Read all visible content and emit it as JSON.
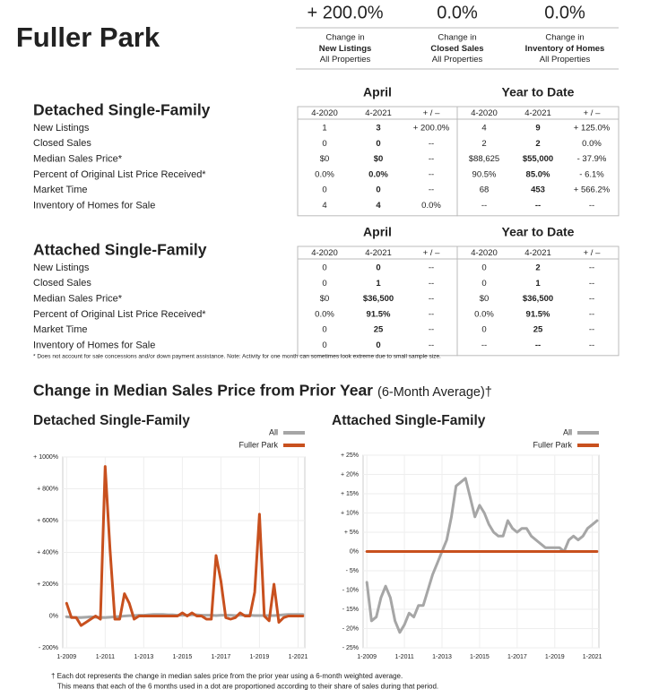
{
  "header": {
    "title": "Fuller Park"
  },
  "summary": [
    {
      "value": "+ 200.0%",
      "lines": [
        "Change in",
        "New Listings",
        "All Properties"
      ]
    },
    {
      "value": "0.0%",
      "lines": [
        "Change in",
        "Closed Sales",
        "All Properties"
      ]
    },
    {
      "value": "0.0%",
      "lines": [
        "Change in",
        "Inventory of Homes",
        "All Properties"
      ]
    }
  ],
  "sections": [
    {
      "title": "Detached Single-Family",
      "groups": [
        "April",
        "Year to Date"
      ],
      "columns": [
        "4-2020",
        "4-2021",
        "+ / –",
        "4-2020",
        "4-2021",
        "+ / –"
      ],
      "rows": [
        [
          "New Listings",
          "1",
          "3",
          "+ 200.0%",
          "4",
          "9",
          "+ 125.0%"
        ],
        [
          "Closed Sales",
          "0",
          "0",
          "--",
          "2",
          "2",
          "0.0%"
        ],
        [
          "Median Sales Price*",
          "$0",
          "$0",
          "--",
          "$88,625",
          "$55,000",
          "- 37.9%"
        ],
        [
          "Percent of Original List Price Received*",
          "0.0%",
          "0.0%",
          "--",
          "90.5%",
          "85.0%",
          "- 6.1%"
        ],
        [
          "Market Time",
          "0",
          "0",
          "--",
          "68",
          "453",
          "+ 566.2%"
        ],
        [
          "Inventory of Homes for Sale",
          "4",
          "4",
          "0.0%",
          "--",
          "--",
          "--"
        ]
      ]
    },
    {
      "title": "Attached Single-Family",
      "groups": [
        "April",
        "Year to Date"
      ],
      "columns": [
        "4-2020",
        "4-2021",
        "+ / –",
        "4-2020",
        "4-2021",
        "+ / –"
      ],
      "rows": [
        [
          "New Listings",
          "0",
          "0",
          "--",
          "0",
          "2",
          "--"
        ],
        [
          "Closed Sales",
          "0",
          "1",
          "--",
          "0",
          "1",
          "--"
        ],
        [
          "Median Sales Price*",
          "$0",
          "$36,500",
          "--",
          "$0",
          "$36,500",
          "--"
        ],
        [
          "Percent of Original List Price Received*",
          "0.0%",
          "91.5%",
          "--",
          "0.0%",
          "91.5%",
          "--"
        ],
        [
          "Market Time",
          "0",
          "25",
          "--",
          "0",
          "25",
          "--"
        ],
        [
          "Inventory of Homes for Sale",
          "0",
          "0",
          "--",
          "--",
          "--",
          "--"
        ]
      ]
    }
  ],
  "note": "* Does not account for sale concessions and/or down payment assistance. Note: Activity for one month can sometimes look extreme due to small sample size.",
  "charts_title": "Change in Median Sales Price from Prior Year",
  "charts_subtitle": "(6-Month Average)†",
  "chart_data": [
    {
      "type": "line",
      "title": "Detached Single-Family",
      "x": [
        2009,
        2009.25,
        2009.5,
        2009.75,
        2010,
        2010.25,
        2010.5,
        2010.75,
        2011,
        2011.25,
        2011.5,
        2011.75,
        2012,
        2012.25,
        2012.5,
        2012.75,
        2013,
        2013.25,
        2013.5,
        2013.75,
        2014,
        2014.25,
        2014.5,
        2014.75,
        2015,
        2015.25,
        2015.5,
        2015.75,
        2016,
        2016.25,
        2016.5,
        2016.75,
        2017,
        2017.25,
        2017.5,
        2017.75,
        2018,
        2018.25,
        2018.5,
        2018.75,
        2019,
        2019.25,
        2019.5,
        2019.75,
        2020,
        2020.25,
        2020.5,
        2020.75,
        2021,
        2021.25
      ],
      "xlim": [
        2008.8,
        2021.35
      ],
      "xticks": [
        {
          "value": 2009,
          "label": "1-2009"
        },
        {
          "value": 2011,
          "label": "1-2011"
        },
        {
          "value": 2013,
          "label": "1-2013"
        },
        {
          "value": 2015,
          "label": "1-2015"
        },
        {
          "value": 2017,
          "label": "1-2017"
        },
        {
          "value": 2019,
          "label": "1-2019"
        },
        {
          "value": 2021,
          "label": "1-2021"
        }
      ],
      "ylim": [
        -200,
        1000
      ],
      "yticks": [
        {
          "value": -200,
          "label": "- 200%"
        },
        {
          "value": 0,
          "label": "0%"
        },
        {
          "value": 200,
          "label": "+ 200%"
        },
        {
          "value": 400,
          "label": "+ 400%"
        },
        {
          "value": 600,
          "label": "+ 600%"
        },
        {
          "value": 800,
          "label": "+ 800%"
        },
        {
          "value": 1000,
          "label": "+ 1000%"
        }
      ],
      "grid": true,
      "series": [
        {
          "name": "All",
          "color": "#a6a6a6",
          "values": [
            -5,
            -8,
            -10,
            -10,
            -8,
            -5,
            -8,
            -10,
            -10,
            -8,
            -5,
            -3,
            0,
            2,
            3,
            5,
            5,
            8,
            10,
            10,
            10,
            8,
            8,
            5,
            5,
            5,
            8,
            8,
            5,
            5,
            5,
            3,
            5,
            5,
            5,
            3,
            5,
            5,
            5,
            3,
            3,
            3,
            3,
            3,
            5,
            8,
            10,
            10,
            10,
            10
          ]
        },
        {
          "name": "Fuller Park",
          "color": "#c8501e",
          "values": [
            80,
            -10,
            -10,
            -60,
            -40,
            -20,
            0,
            -20,
            940,
            420,
            -20,
            -20,
            140,
            80,
            -20,
            0,
            0,
            0,
            0,
            0,
            0,
            0,
            0,
            0,
            20,
            0,
            20,
            0,
            0,
            -20,
            -20,
            380,
            220,
            -10,
            -20,
            -10,
            20,
            0,
            0,
            150,
            640,
            0,
            -30,
            200,
            -40,
            -10,
            0,
            0,
            0,
            0
          ]
        }
      ]
    },
    {
      "type": "line",
      "title": "Attached Single-Family",
      "x": [
        2009,
        2009.25,
        2009.5,
        2009.75,
        2010,
        2010.25,
        2010.5,
        2010.75,
        2011,
        2011.25,
        2011.5,
        2011.75,
        2012,
        2012.25,
        2012.5,
        2012.75,
        2013,
        2013.25,
        2013.5,
        2013.75,
        2014,
        2014.25,
        2014.5,
        2014.75,
        2015,
        2015.25,
        2015.5,
        2015.75,
        2016,
        2016.25,
        2016.5,
        2016.75,
        2017,
        2017.25,
        2017.5,
        2017.75,
        2018,
        2018.25,
        2018.5,
        2018.75,
        2019,
        2019.25,
        2019.5,
        2019.75,
        2020,
        2020.25,
        2020.5,
        2020.75,
        2021,
        2021.25
      ],
      "xlim": [
        2008.8,
        2021.35
      ],
      "xticks": [
        {
          "value": 2009,
          "label": "1-2009"
        },
        {
          "value": 2011,
          "label": "1-2011"
        },
        {
          "value": 2013,
          "label": "1-2013"
        },
        {
          "value": 2015,
          "label": "1-2015"
        },
        {
          "value": 2017,
          "label": "1-2017"
        },
        {
          "value": 2019,
          "label": "1-2019"
        },
        {
          "value": 2021,
          "label": "1-2021"
        }
      ],
      "ylim": [
        -25,
        25
      ],
      "yticks": [
        {
          "value": -25,
          "label": "- 25%"
        },
        {
          "value": -20,
          "label": "- 20%"
        },
        {
          "value": -15,
          "label": "- 15%"
        },
        {
          "value": -10,
          "label": "- 10%"
        },
        {
          "value": -5,
          "label": "- 5%"
        },
        {
          "value": 0,
          "label": "0%"
        },
        {
          "value": 5,
          "label": "+ 5%"
        },
        {
          "value": 10,
          "label": "+ 10%"
        },
        {
          "value": 15,
          "label": "+ 15%"
        },
        {
          "value": 20,
          "label": "+ 20%"
        },
        {
          "value": 25,
          "label": "+ 25%"
        }
      ],
      "grid": true,
      "series": [
        {
          "name": "All",
          "color": "#a6a6a6",
          "values": [
            -8,
            -18,
            -17,
            -12,
            -9,
            -12,
            -18,
            -21,
            -19,
            -16,
            -17,
            -14,
            -14,
            -10,
            -6,
            -3,
            0,
            3,
            9,
            17,
            18,
            19,
            14,
            9,
            12,
            10,
            7,
            5,
            4,
            4,
            8,
            6,
            5,
            6,
            6,
            4,
            3,
            2,
            1,
            1,
            1,
            1,
            0,
            3,
            4,
            3,
            4,
            6,
            7,
            8
          ]
        },
        {
          "name": "Fuller Park",
          "color": "#c8501e",
          "values": [
            0,
            0,
            0,
            0,
            0,
            0,
            0,
            0,
            0,
            0,
            0,
            0,
            0,
            0,
            0,
            0,
            0,
            0,
            0,
            0,
            0,
            0,
            0,
            0,
            0,
            0,
            0,
            0,
            0,
            0,
            0,
            0,
            0,
            0,
            0,
            0,
            0,
            0,
            0,
            0,
            0,
            0,
            0,
            0,
            0,
            0,
            0,
            0,
            0,
            0
          ]
        }
      ]
    }
  ],
  "footnote": [
    "† Each dot represents the change in median sales price from the prior year using a 6-month weighted average.",
    "This means that each of the 6 months used in a dot are proportioned according to their share of sales during that period."
  ]
}
